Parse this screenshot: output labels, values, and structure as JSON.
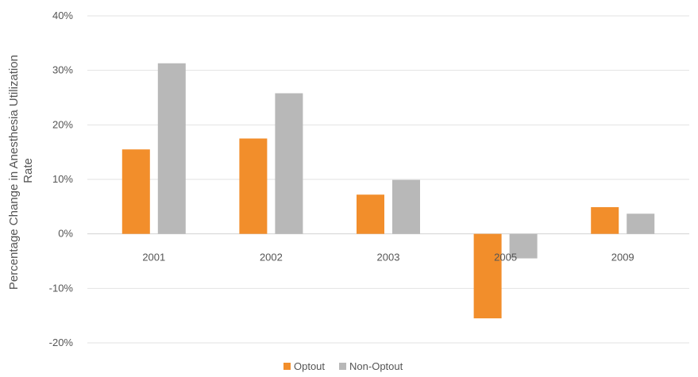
{
  "chart_data": {
    "type": "bar",
    "title": "",
    "xlabel": "",
    "ylabel": "Percentage Change in Anesthesia Utilization Rate",
    "categories": [
      "2001",
      "2002",
      "2003",
      "2005",
      "2009"
    ],
    "series": [
      {
        "name": "Optout",
        "color": "#F28E2B",
        "values": [
          15.5,
          17.5,
          7.2,
          -15.5,
          4.9
        ]
      },
      {
        "name": "Non-Optout",
        "color": "#B8B8B8",
        "values": [
          31.3,
          25.8,
          9.9,
          -4.5,
          3.7
        ]
      }
    ],
    "ylim": [
      -20,
      40
    ],
    "yticks": [
      40,
      30,
      20,
      10,
      0,
      -10,
      -20
    ],
    "ytick_labels": [
      "40%",
      "30%",
      "20%",
      "10%",
      "0%",
      "-10%",
      "-20%"
    ],
    "grid": true,
    "legend_position": "bottom"
  }
}
